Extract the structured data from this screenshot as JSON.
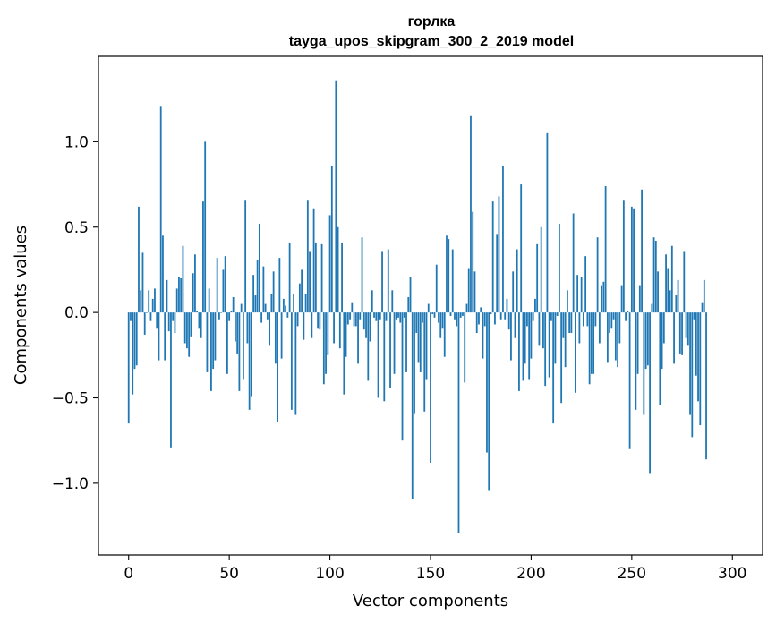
{
  "chart_data": {
    "type": "bar",
    "title": "горлка",
    "subtitle": "tayga_upos_skipgram_300_2_2019 model",
    "xlabel": "Vector components",
    "ylabel": "Components values",
    "xlim": [
      -15,
      315
    ],
    "ylim": [
      -1.42,
      1.5
    ],
    "xticks": [
      0,
      50,
      100,
      150,
      200,
      250,
      300
    ],
    "xtick_labels": [
      "0",
      "50",
      "100",
      "150",
      "200",
      "250",
      "300"
    ],
    "yticks": [
      -1.0,
      -0.5,
      0.0,
      0.5,
      1.0
    ],
    "ytick_labels": [
      "−1.0",
      "−0.5",
      "0.0",
      "0.5",
      "1.0"
    ],
    "grid": false,
    "bar_color": "#1f77b4",
    "values": [
      -0.65,
      -0.05,
      -0.48,
      -0.33,
      -0.31,
      0.62,
      0.13,
      0.35,
      -0.13,
      0.0,
      0.13,
      -0.05,
      0.08,
      0.14,
      -0.09,
      -0.28,
      1.21,
      0.45,
      -0.28,
      0.19,
      -0.11,
      -0.79,
      -0.05,
      -0.12,
      0.14,
      0.21,
      0.2,
      0.39,
      -0.18,
      -0.21,
      -0.26,
      -0.14,
      0.23,
      0.34,
      0.01,
      -0.09,
      -0.15,
      0.65,
      1.0,
      -0.35,
      0.14,
      -0.46,
      -0.33,
      -0.28,
      0.32,
      -0.04,
      0.0,
      0.25,
      0.33,
      -0.36,
      -0.05,
      0.01,
      0.09,
      -0.17,
      -0.24,
      -0.46,
      0.05,
      -0.39,
      0.66,
      -0.18,
      -0.57,
      -0.49,
      0.22,
      0.1,
      0.31,
      0.52,
      -0.06,
      0.27,
      0.05,
      -0.04,
      -0.19,
      0.11,
      0.24,
      -0.3,
      -0.64,
      0.32,
      -0.27,
      0.08,
      0.04,
      -0.03,
      0.41,
      -0.57,
      0.11,
      -0.6,
      -0.08,
      0.17,
      0.25,
      -0.16,
      0.11,
      0.66,
      0.36,
      -0.15,
      0.61,
      0.41,
      -0.09,
      -0.1,
      0.4,
      -0.42,
      -0.36,
      -0.25,
      0.57,
      0.86,
      -0.18,
      1.36,
      0.5,
      -0.21,
      0.41,
      -0.48,
      -0.26,
      -0.07,
      -0.04,
      0.06,
      -0.08,
      -0.08,
      -0.3,
      -0.04,
      0.44,
      -0.1,
      -0.15,
      -0.4,
      -0.17,
      0.13,
      -0.03,
      -0.05,
      -0.5,
      -0.04,
      0.36,
      -0.52,
      -0.05,
      0.37,
      -0.44,
      0.13,
      -0.36,
      -0.04,
      -0.03,
      -0.06,
      -0.75,
      -0.03,
      -0.35,
      0.09,
      0.21,
      -1.09,
      -0.59,
      -0.12,
      -0.29,
      -0.35,
      -0.06,
      -0.58,
      -0.39,
      0.05,
      -0.88,
      -0.01,
      -0.03,
      0.28,
      -0.06,
      -0.15,
      -0.09,
      -0.26,
      0.45,
      0.43,
      -0.02,
      0.37,
      -0.04,
      -0.08,
      -1.29,
      -0.03,
      -0.02,
      -0.41,
      0.05,
      0.26,
      1.15,
      0.59,
      0.24,
      -0.12,
      -0.07,
      0.03,
      -0.27,
      -0.08,
      -0.82,
      -1.04,
      -0.01,
      0.65,
      -0.07,
      0.46,
      0.68,
      -0.04,
      0.86,
      -0.04,
      0.08,
      -0.1,
      -0.28,
      0.24,
      -0.15,
      0.37,
      -0.46,
      0.75,
      -0.4,
      -0.3,
      -0.08,
      -0.39,
      -0.27,
      -0.05,
      0.08,
      0.4,
      -0.19,
      0.5,
      -0.21,
      -0.43,
      1.05,
      -0.38,
      -0.05,
      -0.65,
      -0.3,
      -0.02,
      0.52,
      -0.53,
      -0.15,
      -0.32,
      0.13,
      -0.12,
      -0.12,
      0.58,
      -0.47,
      0.22,
      -0.18,
      0.21,
      -0.08,
      0.33,
      -0.08,
      -0.42,
      -0.36,
      -0.36,
      -0.08,
      0.44,
      -0.18,
      0.16,
      0.18,
      0.74,
      -0.29,
      -0.12,
      -0.09,
      -0.04,
      -0.28,
      -0.32,
      -0.18,
      0.16,
      0.66,
      -0.05,
      0.01,
      -0.8,
      0.62,
      0.61,
      -0.57,
      -0.36,
      0.16,
      0.72,
      -0.6,
      -0.33,
      -0.31,
      -0.94,
      0.05,
      0.44,
      0.42,
      0.24,
      -0.54,
      -0.33,
      -0.18,
      0.34,
      0.26,
      0.13,
      0.39,
      -0.3,
      0.1,
      0.19,
      -0.24,
      -0.25,
      0.36,
      -0.15,
      -0.19,
      -0.6,
      -0.73,
      -0.04,
      -0.37,
      -0.52,
      -0.66,
      0.06,
      0.19,
      -0.86
    ]
  }
}
